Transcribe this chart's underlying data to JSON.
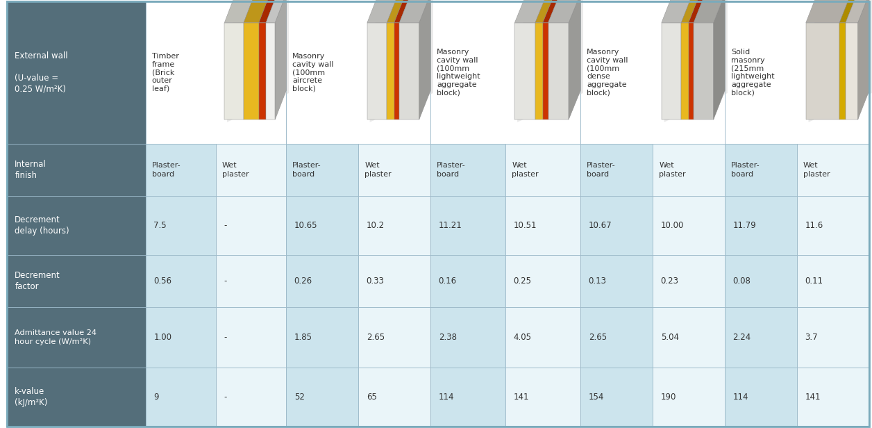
{
  "header_bg": "#546e7a",
  "header_text_color": "#ffffff",
  "light_cell_bg": "#cce4ed",
  "alt_cell_bg": "#ddeef5",
  "white_cell_bg": "#eaf5f9",
  "grid_color": "#9ab8c8",
  "outer_border_color": "#7aaabb",
  "text_color": "#333333",
  "row_header": {
    "external_wall": "External wall\n\n(U-value =\n0.25 W/m²K)",
    "internal_finish": "Internal\nfinish",
    "decrement_delay": "Decrement\ndelay (hours)",
    "decrement_factor": "Decrement\nfactor",
    "admittance": "Admittance value 24\nhour cycle (W/m²K)",
    "kvalue": "k-value\n(kJ/m²K)"
  },
  "wall_types": [
    "Timber\nframe\n(Brick\nouter\nleaf)",
    "Masonry\ncavity wall\n(100mm\naircrete\nblock)",
    "Masonry\ncavity wall\n(100mm\nlightweight\naggregate\nblock)",
    "Masonry\ncavity wall\n(100mm\ndense\naggregate\nblock)",
    "Solid\nmasonry\n(215mm\nlightweight\naggregate\nblock)"
  ],
  "internal_finish_headers": [
    "Plaster-\nboard",
    "Wet\nplaster",
    "Plaster-\nboard",
    "Wet\nplaster",
    "Plaster-\nboard",
    "Wet\nplaster",
    "Plaster-\nboard",
    "Wet\nplaster",
    "Plaster-\nboard",
    "Wet\nplaster"
  ],
  "decrement_delay": [
    "7.5",
    "-",
    "10.65",
    "10.2",
    "11.21",
    "10.51",
    "10.67",
    "10.00",
    "11.79",
    "11.6"
  ],
  "decrement_factor": [
    "0.56",
    "-",
    "0.26",
    "0.33",
    "0.16",
    "0.25",
    "0.13",
    "0.23",
    "0.08",
    "0.11"
  ],
  "admittance": [
    "1.00",
    "-",
    "1.85",
    "2.65",
    "2.38",
    "4.05",
    "2.65",
    "5.04",
    "2.24",
    "3.7"
  ],
  "kvalue": [
    "9",
    "-",
    "52",
    "65",
    "114",
    "141",
    "154",
    "190",
    "114",
    "141"
  ],
  "figsize": [
    12.56,
    6.16
  ],
  "dpi": 100
}
